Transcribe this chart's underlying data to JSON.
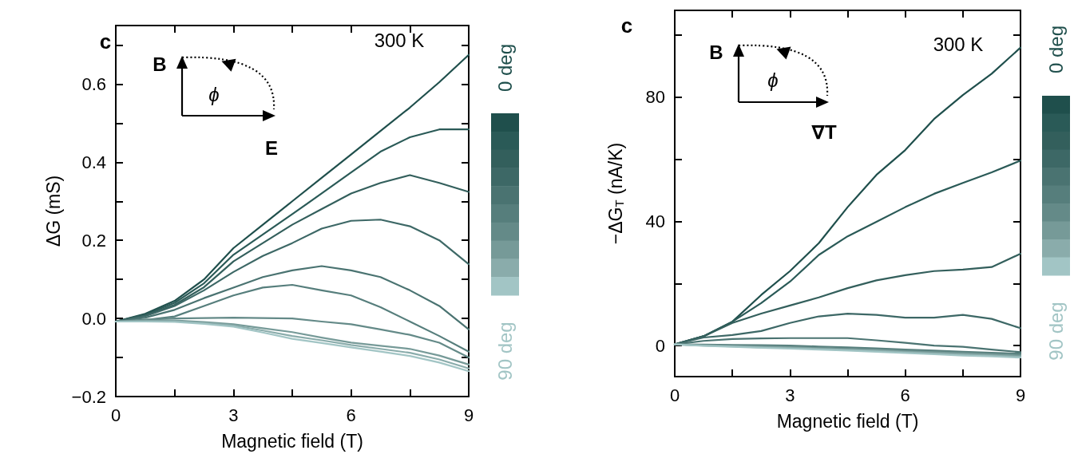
{
  "chart_data": [
    {
      "type": "line",
      "xlabel": "Magnetic field (T)",
      "ylabel": "ΔG (mS)",
      "annotations": [
        "c",
        "300 K",
        "B",
        "ϕ",
        "E",
        "0 deg",
        "90 deg"
      ],
      "x": [
        0,
        0.75,
        1.5,
        2.25,
        3,
        3.75,
        4.5,
        5.25,
        6,
        6.75,
        7.5,
        8.25,
        9
      ],
      "xlim": [
        0,
        9
      ],
      "xticks": [
        0,
        {
          "value": 1.5,
          "label": null
        },
        3,
        {
          "value": 4.5,
          "label": null
        },
        6,
        {
          "value": 7.5,
          "label": null
        },
        9
      ],
      "ylim": [
        -0.2,
        0.75
      ],
      "yticks": [
        {
          "value": -0.2,
          "label": "−0.2"
        },
        {
          "value": -0.1,
          "label": null
        },
        {
          "value": 0,
          "label": "0.0"
        },
        {
          "value": 0.1,
          "label": null
        },
        0.2,
        {
          "value": 0.3,
          "label": null
        },
        0.4,
        {
          "value": 0.5,
          "label": null
        },
        0.6,
        {
          "value": 0.7,
          "label": null
        }
      ],
      "series": [
        {
          "color": "#1f4f4c",
          "values": [
            -0.008,
            0.012,
            0.045,
            0.1,
            0.18,
            0.24,
            0.3,
            0.36,
            0.42,
            0.48,
            0.54,
            0.605,
            0.675
          ]
        },
        {
          "color": "#2a5a57",
          "values": [
            -0.008,
            0.01,
            0.04,
            0.09,
            0.163,
            0.215,
            0.267,
            0.32,
            0.374,
            0.427,
            0.464,
            0.484,
            0.484
          ]
        },
        {
          "color": "#335f5c",
          "values": [
            -0.008,
            0.008,
            0.035,
            0.08,
            0.146,
            0.193,
            0.24,
            0.28,
            0.32,
            0.347,
            0.367,
            0.347,
            0.324
          ]
        },
        {
          "color": "#3d6866",
          "values": [
            -0.008,
            0.006,
            0.032,
            0.072,
            0.119,
            0.16,
            0.193,
            0.23,
            0.25,
            0.253,
            0.236,
            0.2,
            0.139
          ]
        },
        {
          "color": "#4a7371",
          "values": [
            -0.008,
            0.002,
            0.022,
            0.052,
            0.079,
            0.106,
            0.123,
            0.134,
            0.123,
            0.106,
            0.072,
            0.032,
            -0.028
          ]
        },
        {
          "color": "#567e7c",
          "values": [
            -0.008,
            -0.004,
            0.005,
            0.032,
            0.059,
            0.079,
            0.086,
            0.072,
            0.059,
            0.029,
            -0.008,
            -0.045,
            -0.085
          ]
        },
        {
          "color": "#648a88",
          "values": [
            -0.008,
            -0.003,
            0,
            0.001,
            0.002,
            0.001,
            0,
            -0.008,
            -0.015,
            -0.028,
            -0.042,
            -0.062,
            -0.1
          ]
        },
        {
          "color": "#769a98",
          "values": [
            -0.008,
            -0.006,
            -0.005,
            -0.009,
            -0.015,
            -0.025,
            -0.035,
            -0.049,
            -0.062,
            -0.07,
            -0.078,
            -0.095,
            -0.118
          ]
        },
        {
          "color": "#8aacab",
          "values": [
            -0.008,
            -0.007,
            -0.007,
            -0.011,
            -0.018,
            -0.031,
            -0.045,
            -0.056,
            -0.068,
            -0.078,
            -0.088,
            -0.105,
            -0.128
          ]
        },
        {
          "color": "#a2c5c5",
          "values": [
            -0.008,
            -0.008,
            -0.009,
            -0.014,
            -0.021,
            -0.036,
            -0.052,
            -0.063,
            -0.074,
            -0.085,
            -0.096,
            -0.113,
            -0.135
          ]
        }
      ]
    },
    {
      "type": "line",
      "xlabel": "Magnetic field (T)",
      "ylabel": "−ΔG$_{T}$ (nA/K)",
      "annotations": [
        "c",
        "300 K",
        "B",
        "ϕ",
        "∇T",
        "0 deg",
        "90 deg"
      ],
      "x": [
        0,
        0.75,
        1.5,
        2.25,
        3,
        3.75,
        4.5,
        5.25,
        6,
        6.75,
        7.5,
        8.25,
        9
      ],
      "xlim": [
        0,
        9
      ],
      "xticks": [
        0,
        {
          "value": 1.5,
          "label": null
        },
        3,
        {
          "value": 4.5,
          "label": null
        },
        6,
        {
          "value": 7.5,
          "label": null
        },
        9
      ],
      "ylim": [
        -10,
        108
      ],
      "yticks": [
        0,
        {
          "value": 20,
          "label": null
        },
        40,
        {
          "value": 60,
          "label": null
        },
        80,
        {
          "value": 100,
          "label": null
        }
      ],
      "series": [
        {
          "color": "#1f4f4c",
          "values": [
            0.4,
            3,
            7.7,
            16.3,
            24,
            33,
            44.6,
            55,
            63,
            73,
            80.7,
            87.6,
            96
          ]
        },
        {
          "color": "#2a5a57",
          "values": [
            0.4,
            3,
            7.7,
            13.7,
            20.6,
            29.2,
            35.2,
            39.9,
            44.6,
            48.9,
            52.4,
            55.8,
            59.6
          ]
        },
        {
          "color": "#335f5c",
          "values": [
            0.4,
            3,
            7.3,
            10.3,
            12.9,
            15.5,
            18.5,
            21,
            22.7,
            24,
            24.5,
            25.3,
            29.6
          ]
        },
        {
          "color": "#3d6866",
          "values": [
            0.4,
            2.6,
            3.4,
            4.7,
            7.3,
            9.4,
            10.3,
            9.9,
            9,
            9,
            9.9,
            8.6,
            5.6
          ]
        },
        {
          "color": "#4a7371",
          "values": [
            0.4,
            1.5,
            2.1,
            2.3,
            2.4,
            2.4,
            2.4,
            1.7,
            0.9,
            0,
            -0.4,
            -1.3,
            -2.1
          ]
        },
        {
          "color": "#567e7c",
          "values": [
            0.4,
            0.3,
            0.2,
            0.1,
            0,
            -0.3,
            -0.6,
            -0.9,
            -1.3,
            -1.6,
            -2,
            -2.3,
            -2.6
          ]
        },
        {
          "color": "#648a88",
          "values": [
            0.4,
            0.2,
            0,
            -0.2,
            -0.4,
            -0.7,
            -1,
            -1.3,
            -1.6,
            -2,
            -2.3,
            -2.7,
            -3
          ]
        },
        {
          "color": "#769a98",
          "values": [
            0.4,
            0.1,
            -0.1,
            -0.4,
            -0.6,
            -0.9,
            -1.2,
            -1.5,
            -1.9,
            -2.2,
            -2.6,
            -2.9,
            -3.3
          ]
        },
        {
          "color": "#8aacab",
          "values": [
            0.4,
            0,
            -0.3,
            -0.6,
            -0.8,
            -1.1,
            -1.4,
            -1.7,
            -2.1,
            -2.5,
            -2.9,
            -3.2,
            -3.6
          ]
        },
        {
          "color": "#a2c5c5",
          "values": [
            0.4,
            -0.1,
            -0.4,
            -0.7,
            -1,
            -1.3,
            -1.6,
            -2,
            -2.4,
            -2.8,
            -3.2,
            -3.5,
            -3.9
          ]
        }
      ]
    }
  ]
}
